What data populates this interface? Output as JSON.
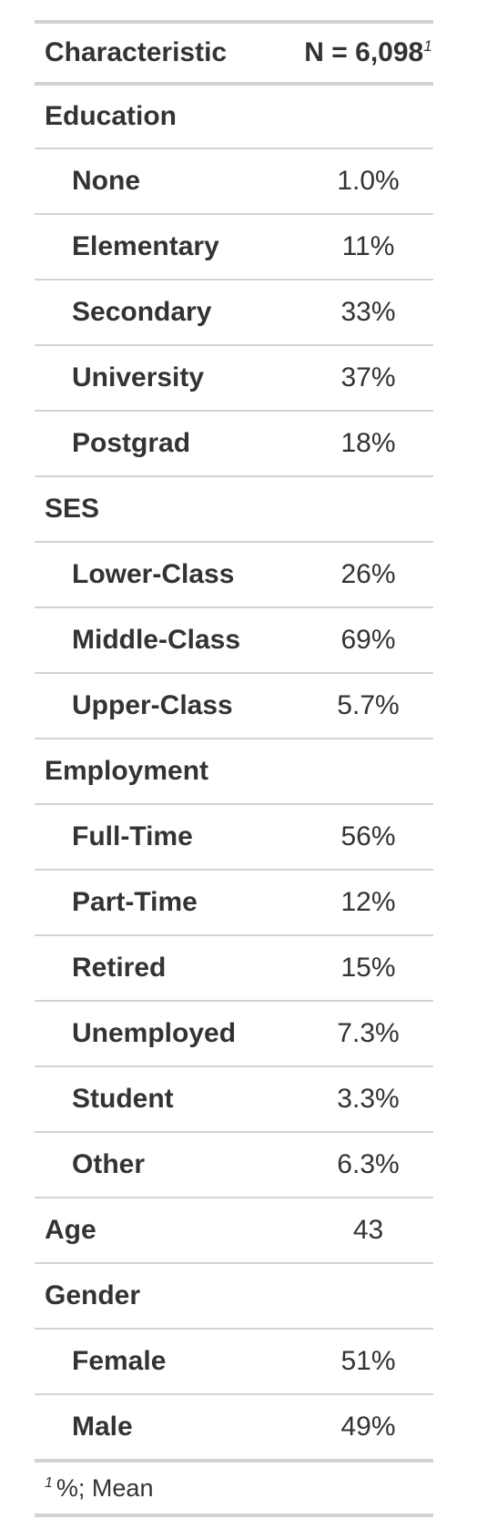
{
  "header": {
    "characteristic": "Characteristic",
    "n_label": "N = 6,098",
    "footnote_mark": "1"
  },
  "rows": [
    {
      "label": "Education",
      "value": "",
      "level": false
    },
    {
      "label": "None",
      "value": "1.0%",
      "level": true
    },
    {
      "label": "Elementary",
      "value": "11%",
      "level": true
    },
    {
      "label": "Secondary",
      "value": "33%",
      "level": true
    },
    {
      "label": "University",
      "value": "37%",
      "level": true
    },
    {
      "label": "Postgrad",
      "value": "18%",
      "level": true
    },
    {
      "label": "SES",
      "value": "",
      "level": false
    },
    {
      "label": "Lower-Class",
      "value": "26%",
      "level": true
    },
    {
      "label": "Middle-Class",
      "value": "69%",
      "level": true
    },
    {
      "label": "Upper-Class",
      "value": "5.7%",
      "level": true
    },
    {
      "label": "Employment",
      "value": "",
      "level": false
    },
    {
      "label": "Full-Time",
      "value": "56%",
      "level": true
    },
    {
      "label": "Part-Time",
      "value": "12%",
      "level": true
    },
    {
      "label": "Retired",
      "value": "15%",
      "level": true
    },
    {
      "label": "Unemployed",
      "value": "7.3%",
      "level": true
    },
    {
      "label": "Student",
      "value": "3.3%",
      "level": true
    },
    {
      "label": "Other",
      "value": "6.3%",
      "level": true
    },
    {
      "label": "Age",
      "value": "43",
      "level": false
    },
    {
      "label": "Gender",
      "value": "",
      "level": false
    },
    {
      "label": "Female",
      "value": "51%",
      "level": true
    },
    {
      "label": "Male",
      "value": "49%",
      "level": true
    }
  ],
  "footnote": {
    "mark": "1",
    "text": "%; Mean"
  },
  "colors": {
    "text": "#333333",
    "rule": "#d3d3d3",
    "background": "#ffffff"
  }
}
